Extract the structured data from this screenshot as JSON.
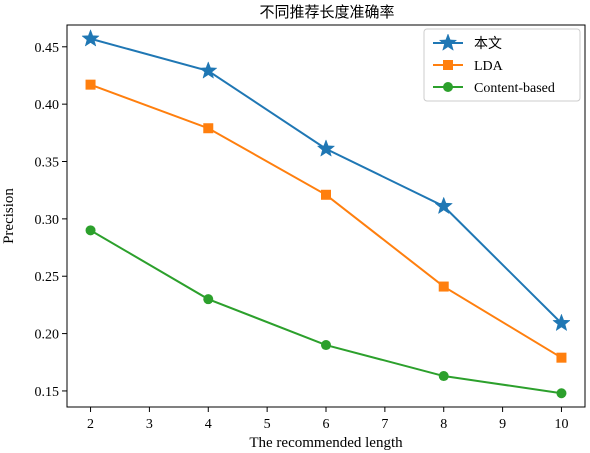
{
  "chart_data": {
    "type": "line",
    "title": "不同推荐长度准确率",
    "xlabel": "The recommended length",
    "ylabel": "Precision",
    "x": [
      2,
      4,
      6,
      8,
      10
    ],
    "xlim": [
      1.6,
      10.4
    ],
    "ylim": [
      0.136,
      0.469
    ],
    "xticks": [
      2,
      3,
      4,
      5,
      6,
      7,
      8,
      9,
      10
    ],
    "yticks": [
      0.15,
      0.2,
      0.25,
      0.3,
      0.35,
      0.4,
      0.45
    ],
    "ytick_labels": [
      "0.15",
      "0.20",
      "0.25",
      "0.30",
      "0.35",
      "0.40",
      "0.45"
    ],
    "grid": false,
    "legend_position": "top-right",
    "series": [
      {
        "name": "本文",
        "values": [
          0.457,
          0.429,
          0.361,
          0.311,
          0.209
        ],
        "color": "#1f77b4",
        "marker": "star"
      },
      {
        "name": "LDA",
        "values": [
          0.417,
          0.379,
          0.321,
          0.241,
          0.179
        ],
        "color": "#ff7f0e",
        "marker": "square"
      },
      {
        "name": "Content-based",
        "values": [
          0.29,
          0.23,
          0.19,
          0.163,
          0.148
        ],
        "color": "#2ca02c",
        "marker": "circle"
      }
    ]
  }
}
